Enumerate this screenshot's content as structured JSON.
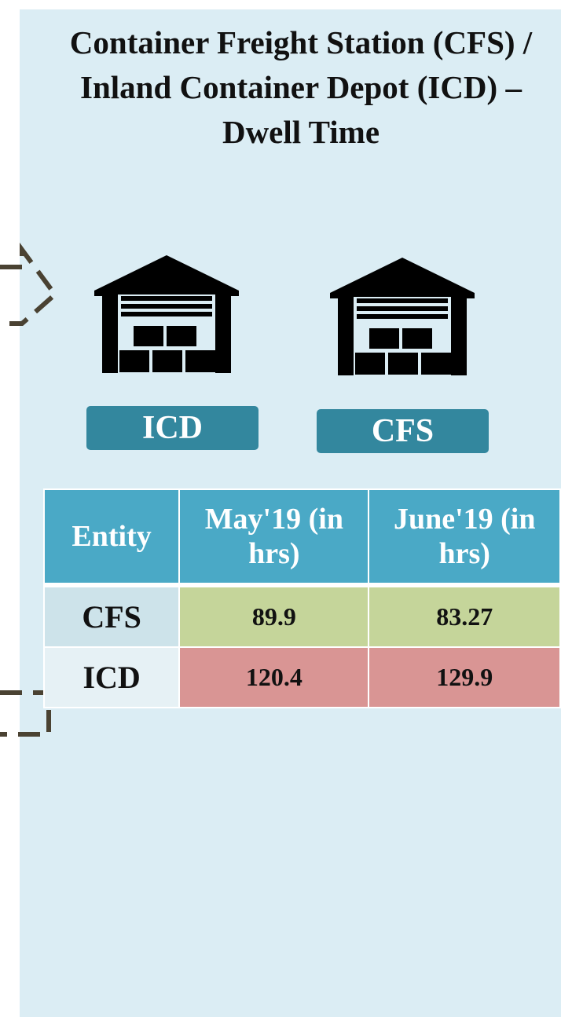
{
  "title": "Container Freight Station (CFS) / Inland Container Depot (ICD) – Dwell Time",
  "icons": [
    {
      "label": "ICD"
    },
    {
      "label": "CFS"
    }
  ],
  "table": {
    "header": [
      "Entity",
      "May'19 (in hrs)",
      "June'19 (in hrs)"
    ],
    "rows": [
      [
        "CFS",
        "89.9",
        "83.27"
      ],
      [
        "ICD",
        "120.4",
        "129.9"
      ]
    ]
  }
}
